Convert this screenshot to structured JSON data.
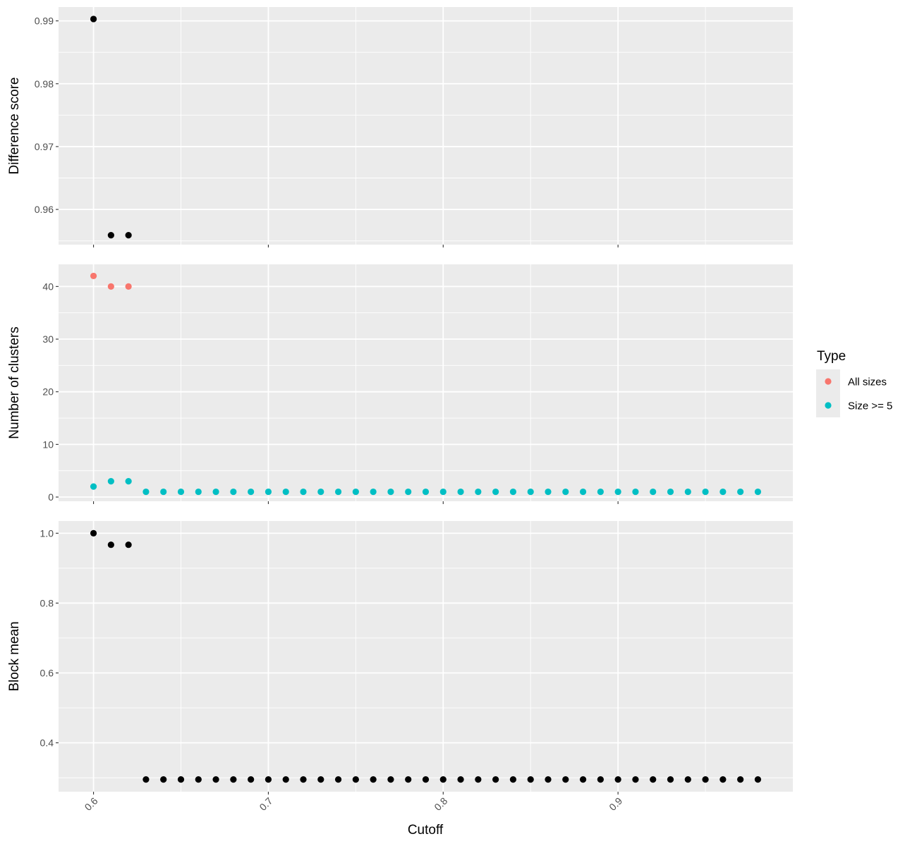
{
  "chart_data": {
    "type": "scatter",
    "xlabel": "Cutoff",
    "xlim": [
      0.58,
      1.0
    ],
    "x_ticks": [
      0.6,
      0.7,
      0.8,
      0.9
    ],
    "x_tick_labels": [
      "0.6",
      "0.7",
      "0.8",
      "0.9"
    ],
    "x_minor_ticks": [
      0.65,
      0.75,
      0.85,
      0.95
    ],
    "x": [
      0.6,
      0.61,
      0.62,
      0.63,
      0.64,
      0.65,
      0.66,
      0.67,
      0.68,
      0.69,
      0.7,
      0.71,
      0.72,
      0.73,
      0.74,
      0.75,
      0.76,
      0.77,
      0.78,
      0.79,
      0.8,
      0.81,
      0.82,
      0.83,
      0.84,
      0.85,
      0.86,
      0.87,
      0.88,
      0.89,
      0.9,
      0.91,
      0.92,
      0.93,
      0.94,
      0.95,
      0.96,
      0.97,
      0.98
    ],
    "grid": true,
    "legend_position": "right",
    "panels": [
      {
        "ylabel": "Difference score",
        "ylim": [
          0.9544,
          0.9922
        ],
        "y_ticks": [
          0.96,
          0.97,
          0.98,
          0.99
        ],
        "y_tick_labels": [
          "0.96",
          "0.97",
          "0.98",
          "0.99"
        ],
        "y_minor_ticks": [
          0.955,
          0.965,
          0.975,
          0.985
        ],
        "series": [
          {
            "color": "#000000",
            "x": [
              0.6,
              0.61,
              0.62
            ],
            "values": [
              0.9903,
              0.9559,
              0.9559
            ]
          }
        ]
      },
      {
        "ylabel": "Number of clusters",
        "ylim": [
          -0.8,
          44.2
        ],
        "y_ticks": [
          0,
          10,
          20,
          30,
          40
        ],
        "y_tick_labels": [
          "0",
          "10",
          "20",
          "30",
          "40"
        ],
        "y_minor_ticks": [
          5,
          15,
          25,
          35
        ],
        "series": [
          {
            "name": "All sizes",
            "color": "#F8766D",
            "x": [
              0.6,
              0.61,
              0.62
            ],
            "values": [
              42,
              40,
              40
            ]
          },
          {
            "name": "Size >= 5",
            "color": "#00BFC4",
            "x": [
              0.6,
              0.61,
              0.62,
              0.63,
              0.64,
              0.65,
              0.66,
              0.67,
              0.68,
              0.69,
              0.7,
              0.71,
              0.72,
              0.73,
              0.74,
              0.75,
              0.76,
              0.77,
              0.78,
              0.79,
              0.8,
              0.81,
              0.82,
              0.83,
              0.84,
              0.85,
              0.86,
              0.87,
              0.88,
              0.89,
              0.9,
              0.91,
              0.92,
              0.93,
              0.94,
              0.95,
              0.96,
              0.97,
              0.98
            ],
            "values": [
              2,
              3,
              3,
              1,
              1,
              1,
              1,
              1,
              1,
              1,
              1,
              1,
              1,
              1,
              1,
              1,
              1,
              1,
              1,
              1,
              1,
              1,
              1,
              1,
              1,
              1,
              1,
              1,
              1,
              1,
              1,
              1,
              1,
              1,
              1,
              1,
              1,
              1,
              1
            ]
          }
        ]
      },
      {
        "ylabel": "Block mean",
        "ylim": [
          0.26,
          1.035
        ],
        "y_ticks": [
          0.4,
          0.6,
          0.8,
          1.0
        ],
        "y_tick_labels": [
          "0.4",
          "0.6",
          "0.8",
          "1.0"
        ],
        "y_minor_ticks": [
          0.3,
          0.5,
          0.7,
          0.9
        ],
        "series": [
          {
            "color": "#000000",
            "x": [
              0.6,
              0.61,
              0.62,
              0.63,
              0.64,
              0.65,
              0.66,
              0.67,
              0.68,
              0.69,
              0.7,
              0.71,
              0.72,
              0.73,
              0.74,
              0.75,
              0.76,
              0.77,
              0.78,
              0.79,
              0.8,
              0.81,
              0.82,
              0.83,
              0.84,
              0.85,
              0.86,
              0.87,
              0.88,
              0.89,
              0.9,
              0.91,
              0.92,
              0.93,
              0.94,
              0.95,
              0.96,
              0.97,
              0.98
            ],
            "values": [
              1.0,
              0.967,
              0.967,
              0.295,
              0.295,
              0.295,
              0.295,
              0.295,
              0.295,
              0.295,
              0.295,
              0.295,
              0.295,
              0.295,
              0.295,
              0.295,
              0.295,
              0.295,
              0.295,
              0.295,
              0.295,
              0.295,
              0.295,
              0.295,
              0.295,
              0.295,
              0.295,
              0.295,
              0.295,
              0.295,
              0.295,
              0.295,
              0.295,
              0.295,
              0.295,
              0.295,
              0.295,
              0.295,
              0.295
            ]
          }
        ]
      }
    ],
    "legend": {
      "title": "Type",
      "entries": [
        {
          "label": "All sizes",
          "color": "#F8766D"
        },
        {
          "label": "Size >= 5",
          "color": "#00BFC4"
        }
      ]
    },
    "colors": {
      "panel_background": "#EBEBEB",
      "grid": "#FFFFFF",
      "tick_text": "#4D4D4D"
    }
  }
}
